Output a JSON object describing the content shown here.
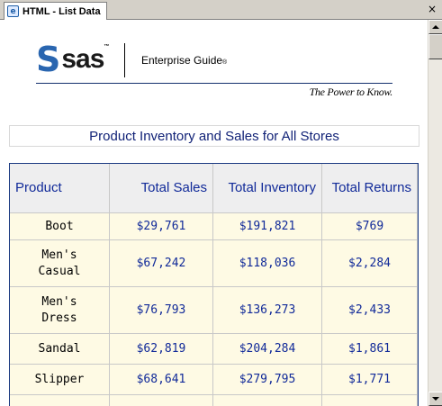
{
  "tab": {
    "title": "HTML - List Data",
    "icon": "e",
    "close": "×"
  },
  "logo": {
    "brand": "sas",
    "product": "Enterprise Guide",
    "product_mark": "®",
    "tm": "™",
    "tagline": "The Power to Know."
  },
  "report": {
    "title": "Product Inventory and Sales for All Stores"
  },
  "table": {
    "headers": [
      "Product",
      "Total Sales",
      "Total Inventory",
      "Total Returns"
    ],
    "rows": [
      {
        "product": "Boot",
        "sales": "$29,761",
        "inventory": "$191,821",
        "returns": "$769"
      },
      {
        "product": "Men's Casual",
        "sales": "$67,242",
        "inventory": "$118,036",
        "returns": "$2,284"
      },
      {
        "product": "Men's Dress",
        "sales": "$76,793",
        "inventory": "$136,273",
        "returns": "$2,433"
      },
      {
        "product": "Sandal",
        "sales": "$62,819",
        "inventory": "$204,284",
        "returns": "$1,861"
      },
      {
        "product": "Slipper",
        "sales": "$68,641",
        "inventory": "$279,795",
        "returns": "$1,771"
      }
    ]
  },
  "colors": {
    "title": "#112277",
    "header_text": "#112a99",
    "row_bg": "#fefae4",
    "border": "#1b3a82"
  }
}
